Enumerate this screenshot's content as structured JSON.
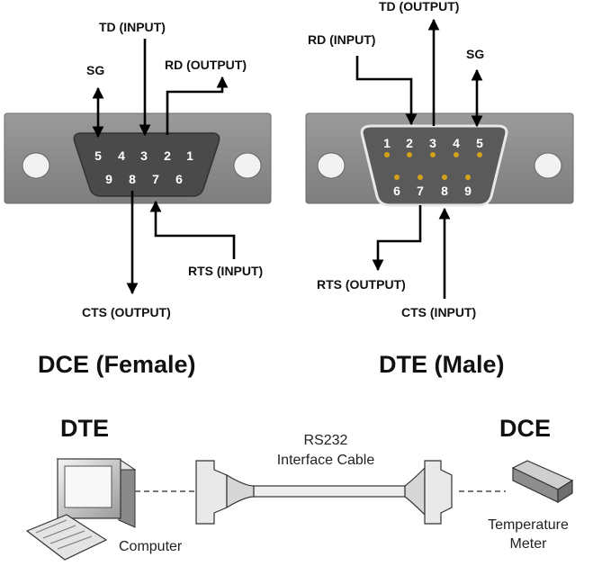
{
  "dce_connector": {
    "caption": "DCE (Female)",
    "top_pins": [
      "5",
      "4",
      "3",
      "2",
      "1"
    ],
    "bottom_pins": [
      "9",
      "8",
      "7",
      "6"
    ],
    "labels": {
      "td": "TD (INPUT)",
      "rd": "RD (OUTPUT)",
      "sg": "SG",
      "rts": "RTS (INPUT)",
      "cts": "CTS (OUTPUT)"
    }
  },
  "dte_connector": {
    "caption": "DTE (Male)",
    "top_pins": [
      "1",
      "2",
      "3",
      "4",
      "5"
    ],
    "bottom_pins": [
      "6",
      "7",
      "8",
      "9"
    ],
    "labels": {
      "td": "TD (OUTPUT)",
      "rd": "RD (INPUT)",
      "sg": "SG",
      "rts": "RTS (OUTPUT)",
      "cts": "CTS (INPUT)"
    }
  },
  "bottom": {
    "dte_title": "DTE",
    "dce_title": "DCE",
    "cable_line1": "RS232",
    "cable_line2": "Interface Cable",
    "computer": "Computer",
    "meter_line1": "Temperature",
    "meter_line2": "Meter"
  },
  "colors": {
    "connector_shell": "#8c8c8c",
    "connector_face": "#4a4a4a",
    "pin_gold": "#d4a21a"
  }
}
